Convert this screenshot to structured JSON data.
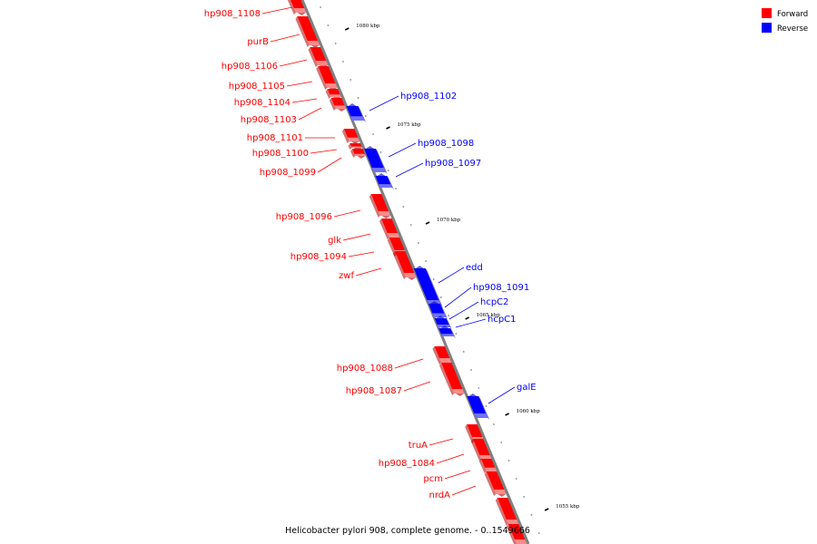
{
  "colors": {
    "forward": "#ff0000",
    "forward_light": "#ff8a8a",
    "forward_dark": "#b00000",
    "reverse": "#0000ff",
    "reverse_light": "#7070ff",
    "reverse_dark": "#0000a8",
    "backbone": "#808080"
  },
  "legend": {
    "forward_label": "Forward",
    "reverse_label": "Reverse"
  },
  "caption": "Helicobacter pylori 908, complete genome. - 0..1549666",
  "scale_labels": [
    "1080 kbp",
    "1075 kbp",
    "1070 kbp",
    "1065 kbp",
    "1060 kbp",
    "1055 kbp"
  ],
  "genes": [
    {
      "label": "hp908_1108",
      "strand": "forward"
    },
    {
      "label": "purB",
      "strand": "forward"
    },
    {
      "label": "hp908_1106",
      "strand": "forward"
    },
    {
      "label": "hp908_1105",
      "strand": "forward"
    },
    {
      "label": "hp908_1104",
      "strand": "forward"
    },
    {
      "label": "hp908_1103",
      "strand": "forward"
    },
    {
      "label": "hp908_1102",
      "strand": "reverse"
    },
    {
      "label": "hp908_1101",
      "strand": "forward"
    },
    {
      "label": "hp908_1100",
      "strand": "forward"
    },
    {
      "label": "hp908_1099",
      "strand": "forward"
    },
    {
      "label": "hp908_1098",
      "strand": "reverse"
    },
    {
      "label": "hp908_1097",
      "strand": "reverse"
    },
    {
      "label": "hp908_1096",
      "strand": "forward"
    },
    {
      "label": "glk",
      "strand": "forward"
    },
    {
      "label": "hp908_1094",
      "strand": "forward"
    },
    {
      "label": "zwf",
      "strand": "forward"
    },
    {
      "label": "edd",
      "strand": "reverse"
    },
    {
      "label": "hp908_1091",
      "strand": "reverse"
    },
    {
      "label": "hcpC2",
      "strand": "reverse"
    },
    {
      "label": "hcpC1",
      "strand": "reverse"
    },
    {
      "label": "hp908_1088",
      "strand": "forward"
    },
    {
      "label": "hp908_1087",
      "strand": "forward"
    },
    {
      "label": "galE",
      "strand": "reverse"
    },
    {
      "label": "truA",
      "strand": "forward"
    },
    {
      "label": "hp908_1084",
      "strand": "forward"
    },
    {
      "label": "pcm",
      "strand": "forward"
    },
    {
      "label": "nrdA",
      "strand": "forward"
    }
  ]
}
